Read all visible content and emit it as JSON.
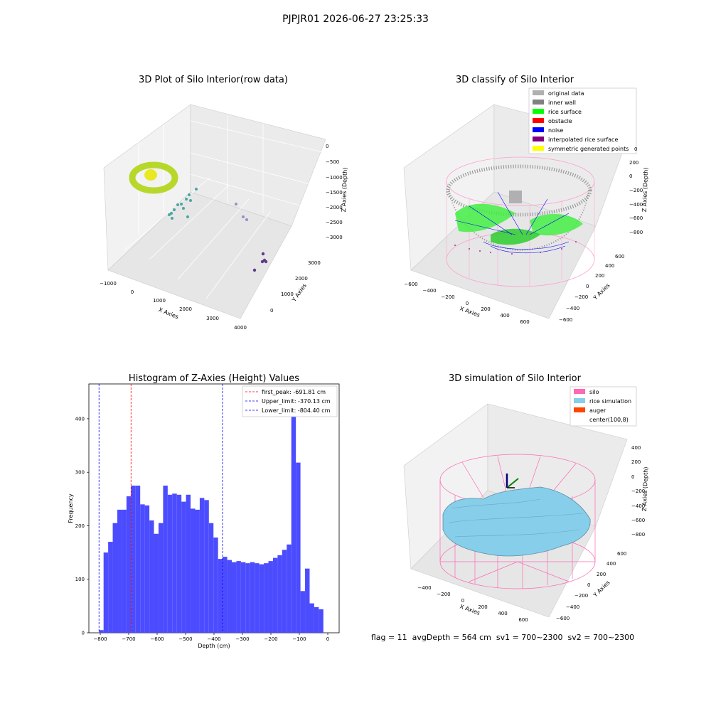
{
  "figure_title": "PJPJR01 2026-06-27 23:25:33",
  "colors": {
    "hist_bar": "#4c4cff",
    "first_peak": "#ff0000",
    "limits": "#0000ff",
    "pane": "#f2f2f2",
    "grid": "#d9d9d9",
    "silo_pink": "#ff69b4",
    "rice_blue": "#87ceeb",
    "auger": "#ff4500",
    "original_gray": "#b0b0b0",
    "inner_wall": "#808080",
    "rice_green": "#00ff00",
    "obstacle": "#ff0000",
    "noise": "#0000ff",
    "interp_purple": "#800080",
    "symmetric_yellow": "#ffff00"
  },
  "panel1": {
    "title": "3D Plot of Silo Interior(row data)",
    "x_label": "X Axies",
    "y_label": "Y Axies",
    "z_label": "Z Axies (Depth)",
    "x_ticks": [
      "−1000",
      "0",
      "1000",
      "2000",
      "3000",
      "4000"
    ],
    "y_ticks": [
      "0",
      "1000",
      "2000",
      "3000"
    ],
    "z_ticks": [
      "0",
      "−500",
      "−1000",
      "−1500",
      "−2000",
      "−2500",
      "−3000"
    ]
  },
  "panel2": {
    "title": "3D classify of Silo Interior",
    "x_label": "X Axies",
    "y_label": "Y Axies",
    "z_label": "Z Axies (Depth)",
    "x_ticks": [
      "−600",
      "−400",
      "−200",
      "0",
      "200",
      "400",
      "600"
    ],
    "y_ticks": [
      "−600",
      "−400",
      "−200",
      "0",
      "200",
      "400",
      "600"
    ],
    "z_ticks": [
      "200",
      "0",
      "−200",
      "−400",
      "−600",
      "−800"
    ],
    "z_top_partial": "0",
    "legend": [
      {
        "label": "original data",
        "color": "#b0b0b0"
      },
      {
        "label": "inner wall",
        "color": "#808080"
      },
      {
        "label": "rice surface",
        "color": "#00ff00"
      },
      {
        "label": "obstacle",
        "color": "#ff0000"
      },
      {
        "label": "noise",
        "color": "#0000ff"
      },
      {
        "label": "interpolated rice surface",
        "color": "#800080"
      },
      {
        "label": "symmetric generated points",
        "color": "#ffff00"
      }
    ]
  },
  "panel4": {
    "title": "3D simulation of Silo Interior",
    "x_label": "X Axies",
    "y_label": "Y Axies",
    "z_label": "Z Axies (Depth)",
    "x_ticks": [
      "−400",
      "−200",
      "0",
      "200",
      "400",
      "600"
    ],
    "y_ticks": [
      "−600",
      "−400",
      "−200",
      "0",
      "200",
      "400",
      "600"
    ],
    "z_ticks": [
      "400",
      "200",
      "0",
      "−200",
      "−400",
      "−600",
      "−800"
    ],
    "legend": [
      {
        "label": "silo",
        "color": "#ff69b4"
      },
      {
        "label": "rice simulation",
        "color": "#87ceeb"
      },
      {
        "label": "auger",
        "color": "#ff4500"
      },
      {
        "label": "center(100,8)",
        "color": ""
      }
    ],
    "status": "flag = 11  avgDepth = 564 cm  sv1 = 700~2300  sv2 = 700~2300"
  },
  "chart_data": [
    {
      "type": "histogram",
      "title": "Histogram of Z-Axies (Height) Values",
      "xlabel": "Depth (cm)",
      "ylabel": "Frequency",
      "xlim": [
        -840,
        40
      ],
      "ylim": [
        0,
        465
      ],
      "x_ticks": [
        -800,
        -700,
        -600,
        -500,
        -400,
        -300,
        -200,
        -100,
        0
      ],
      "y_ticks": [
        0,
        100,
        200,
        300,
        400
      ],
      "bin_start": -804.4,
      "bin_width": 16.1,
      "values": [
        5,
        150,
        170,
        205,
        230,
        230,
        255,
        275,
        275,
        240,
        238,
        210,
        185,
        205,
        275,
        258,
        260,
        258,
        245,
        258,
        232,
        230,
        252,
        248,
        205,
        178,
        138,
        142,
        136,
        132,
        134,
        132,
        130,
        132,
        130,
        128,
        130,
        134,
        140,
        145,
        155,
        165,
        445,
        318,
        78,
        120,
        55,
        48,
        44
      ],
      "lines": [
        {
          "label": "first_peak: -691.81 cm",
          "x": -691.81,
          "color": "#ff0000"
        },
        {
          "label": "Upper_limit: -370.13 cm",
          "x": -370.13,
          "color": "#0000ff"
        },
        {
          "label": "Lower_limit: -804.40 cm",
          "x": -804.4,
          "color": "#0000ff"
        }
      ]
    }
  ]
}
